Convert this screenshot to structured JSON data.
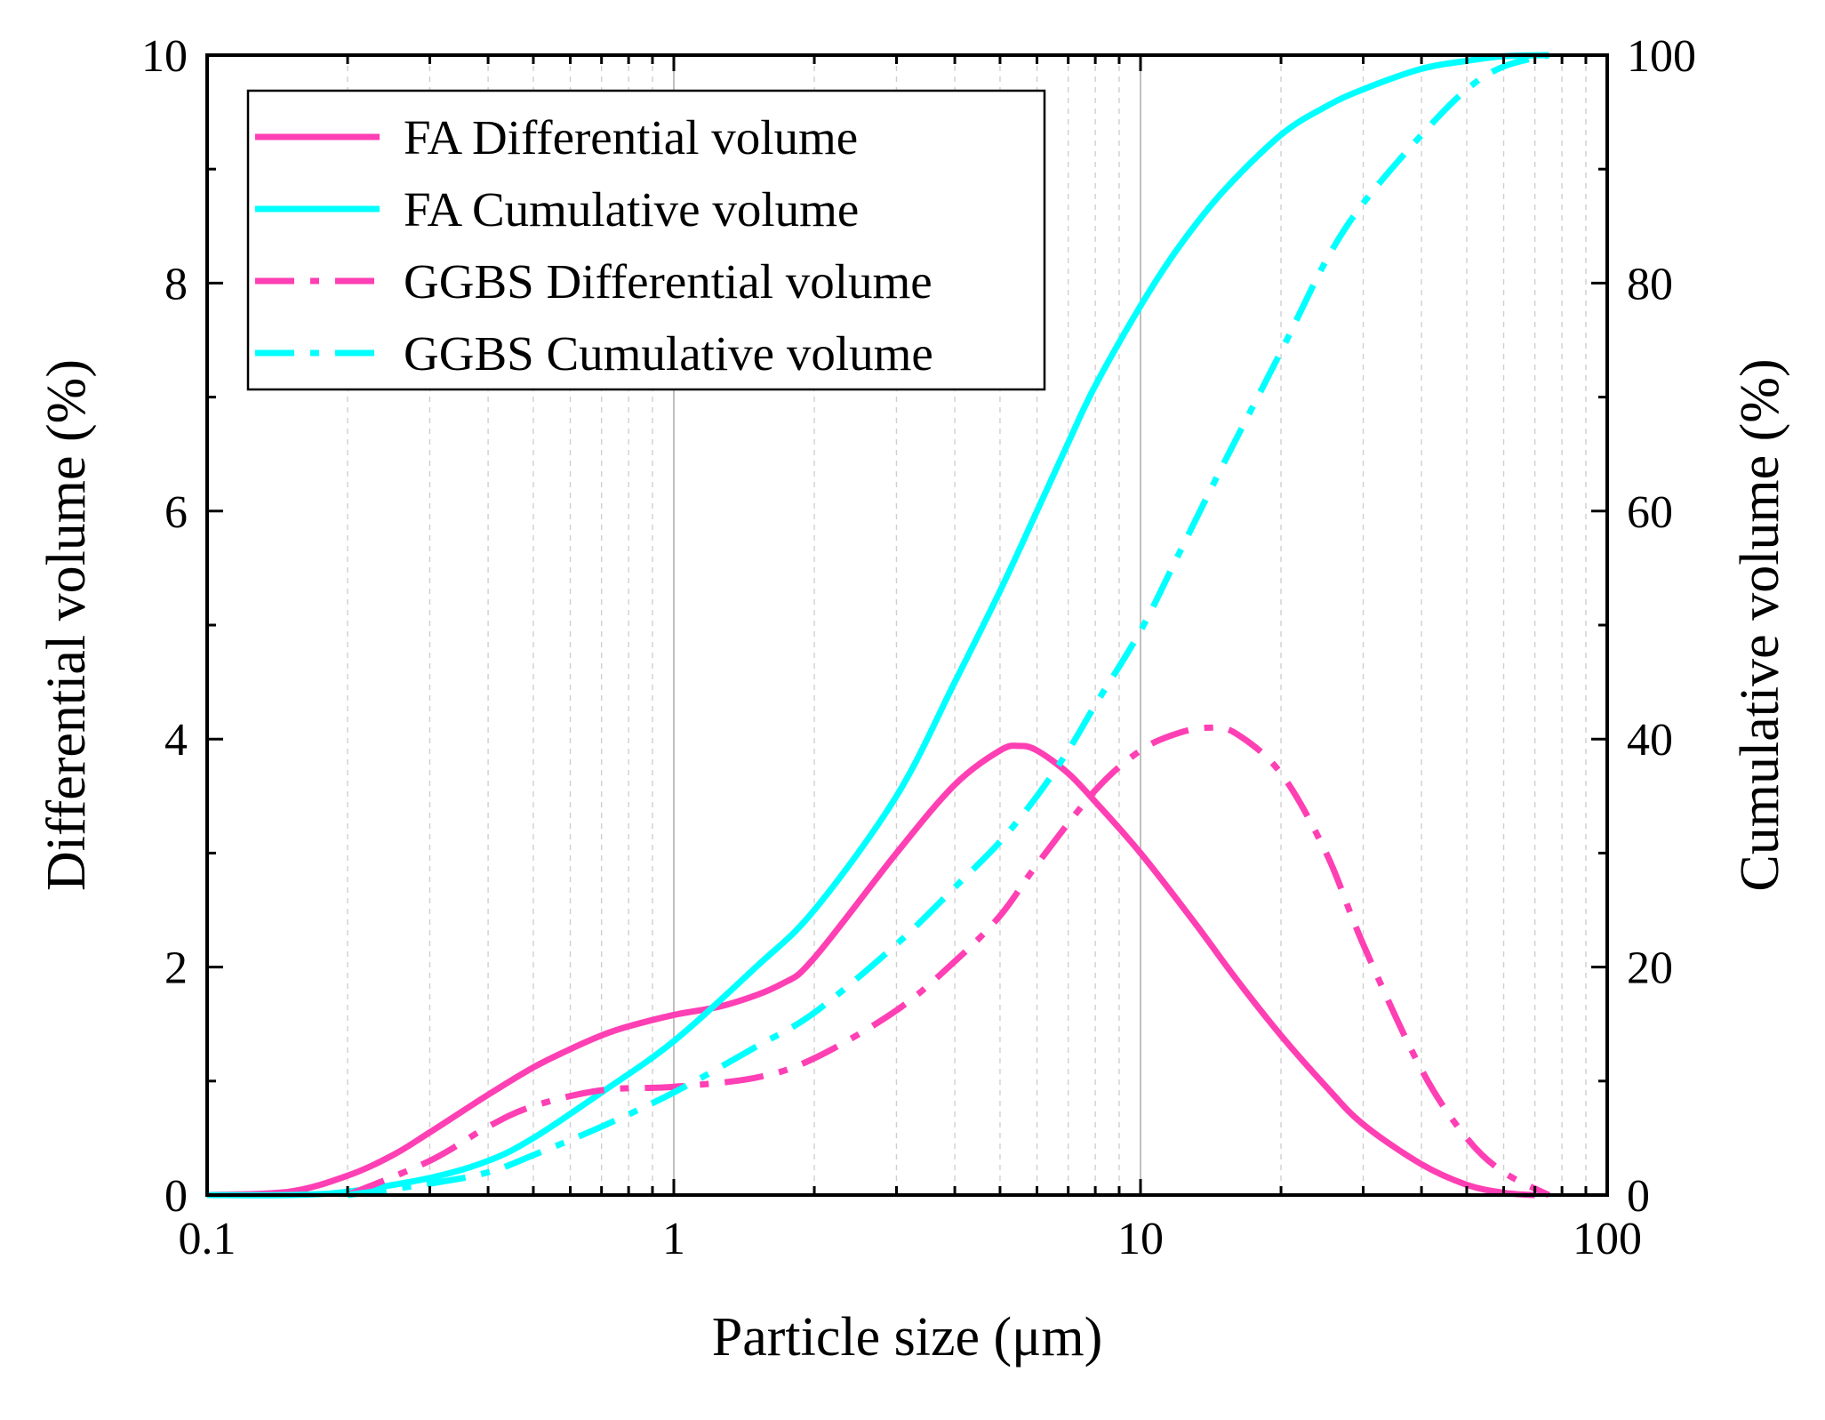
{
  "chart_data": {
    "type": "line",
    "xscale": "log",
    "xlabel": "Particle size (μm)",
    "ylabel": "Differential volume (%)",
    "y2label": "Cumulative volume (%)",
    "xlim": [
      0.1,
      100
    ],
    "ylim": [
      0,
      10
    ],
    "y2lim": [
      0,
      100
    ],
    "x_ticks": [
      0.1,
      1,
      10,
      100
    ],
    "x_tick_labels": [
      "0.1",
      "1",
      "10",
      "100"
    ],
    "y_ticks": [
      0,
      2,
      4,
      6,
      8,
      10
    ],
    "y_tick_labels": [
      "0",
      "2",
      "4",
      "6",
      "8",
      "10"
    ],
    "y2_ticks": [
      0,
      20,
      40,
      60,
      80,
      100
    ],
    "y2_tick_labels": [
      "0",
      "20",
      "40",
      "60",
      "80",
      "100"
    ],
    "grid": "vertical",
    "legend_position": "top-left",
    "series": [
      {
        "name": "FA Differential volume",
        "axis": "left",
        "color": "#ff3fb4",
        "style": "solid",
        "x": [
          0.1,
          0.15,
          0.2,
          0.25,
          0.3,
          0.4,
          0.5,
          0.6,
          0.7,
          0.8,
          1,
          1.3,
          1.7,
          2,
          3,
          4,
          5,
          5.5,
          6,
          7,
          8,
          10,
          13,
          16,
          20,
          25,
          30,
          40,
          50,
          60,
          70
        ],
        "y": [
          0,
          0.03,
          0.17,
          0.35,
          0.55,
          0.88,
          1.12,
          1.28,
          1.4,
          1.48,
          1.58,
          1.67,
          1.85,
          2.08,
          3.0,
          3.6,
          3.9,
          3.94,
          3.9,
          3.7,
          3.45,
          3.0,
          2.4,
          1.9,
          1.4,
          0.95,
          0.62,
          0.27,
          0.09,
          0.02,
          0
        ]
      },
      {
        "name": "FA Cumulative volume",
        "axis": "right",
        "color": "#00ffff",
        "style": "solid",
        "x": [
          0.1,
          0.15,
          0.2,
          0.3,
          0.4,
          0.5,
          0.7,
          1,
          1.5,
          2,
          3,
          4,
          5,
          6,
          7,
          8,
          10,
          12,
          15,
          20,
          25,
          30,
          40,
          50,
          60,
          75
        ],
        "y": [
          0,
          0,
          0.3,
          1.5,
          3,
          5,
          9,
          13.5,
          20,
          25,
          35,
          45,
          53,
          60,
          66,
          71,
          78,
          83,
          88,
          93,
          95.5,
          97,
          98.8,
          99.5,
          99.9,
          100
        ]
      },
      {
        "name": "GGBS Differential volume",
        "axis": "left",
        "color": "#ff3fb4",
        "style": "dashdot",
        "x": [
          0.2,
          0.3,
          0.4,
          0.5,
          0.7,
          1,
          1.5,
          2,
          3,
          4,
          5,
          6,
          8,
          10,
          12,
          14,
          16,
          20,
          25,
          30,
          40,
          50,
          60,
          75
        ],
        "y": [
          0,
          0.3,
          0.6,
          0.78,
          0.92,
          0.95,
          1.03,
          1.2,
          1.62,
          2.05,
          2.45,
          2.9,
          3.55,
          3.9,
          4.05,
          4.1,
          4.05,
          3.7,
          3.0,
          2.2,
          1.1,
          0.5,
          0.2,
          0
        ]
      },
      {
        "name": "GGBS Cumulative volume",
        "axis": "right",
        "color": "#00ffff",
        "style": "dashdot",
        "x": [
          0.2,
          0.3,
          0.4,
          0.5,
          0.7,
          1,
          1.5,
          2,
          3,
          4,
          5,
          6,
          7,
          8,
          10,
          12,
          15,
          20,
          25,
          30,
          40,
          50,
          60,
          75
        ],
        "y": [
          0,
          1,
          2,
          3.5,
          6,
          9,
          13,
          16,
          22,
          27,
          31,
          35,
          39,
          43,
          49.5,
          56,
          64,
          74,
          82,
          87,
          93,
          97,
          99,
          100
        ]
      }
    ]
  }
}
